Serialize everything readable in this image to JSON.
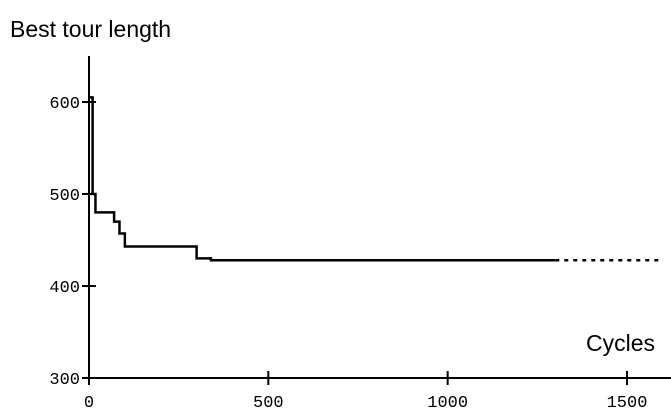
{
  "chart_data": {
    "type": "line",
    "ylabel": "Best tour length",
    "xlabel": "Cycles",
    "xlim": [
      0,
      1600
    ],
    "ylim": [
      300,
      650
    ],
    "x_ticks": [
      0,
      500,
      1000,
      1500
    ],
    "y_ticks": [
      300,
      400,
      500,
      600
    ],
    "grid": false,
    "series": [
      {
        "step": true,
        "line_style": "solid",
        "color": "#000000",
        "x": [
          0,
          10,
          10,
          18,
          18,
          70,
          70,
          85,
          85,
          100,
          100,
          300,
          300,
          340,
          340,
          1300
        ],
        "y": [
          605,
          605,
          500,
          500,
          480,
          480,
          470,
          470,
          457,
          457,
          443,
          443,
          430,
          430,
          428,
          428
        ]
      },
      {
        "step": false,
        "line_style": "dotted",
        "color": "#000000",
        "x": [
          1300,
          1600
        ],
        "y": [
          428,
          428
        ]
      }
    ]
  }
}
